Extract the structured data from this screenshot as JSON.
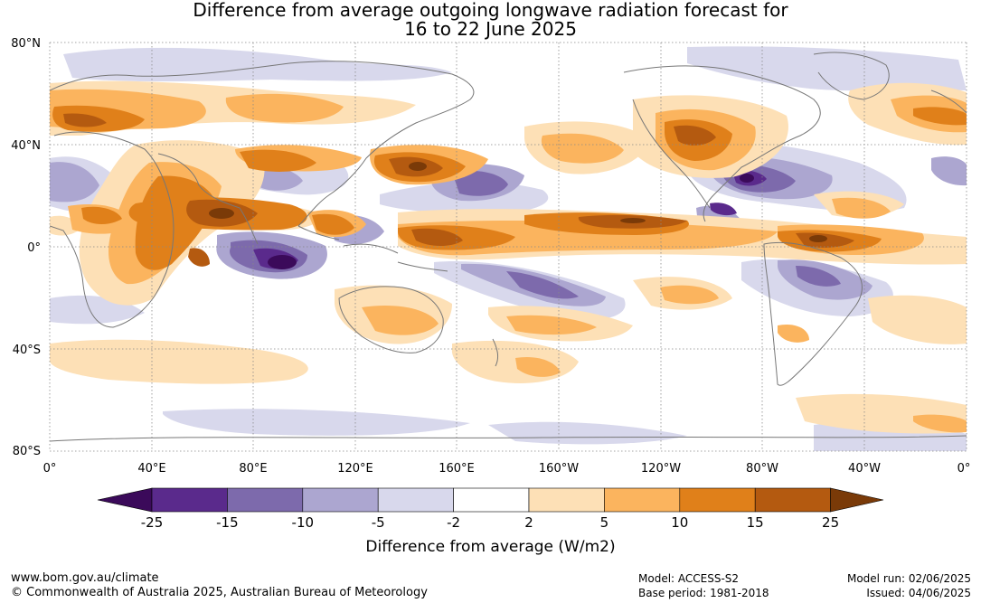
{
  "title_line1": "Difference from average outgoing longwave radiation forecast for",
  "title_line2": "16 to 22 June 2025",
  "lat_labels": [
    "80°N",
    "40°N",
    "0°",
    "40°S",
    "80°S"
  ],
  "lon_labels": [
    "0°",
    "40°E",
    "80°E",
    "120°E",
    "160°E",
    "160°W",
    "120°W",
    "80°W",
    "40°W",
    "0°"
  ],
  "colorbar": {
    "label": "Difference from average (W/m2)",
    "ticks": [
      "-25",
      "-15",
      "-10",
      "-5",
      "-2",
      "2",
      "5",
      "10",
      "15",
      "25"
    ],
    "colors": [
      "#3b0a5a",
      "#5a2a8c",
      "#7d6aac",
      "#aca6d0",
      "#d8d8ec",
      "#ffffff",
      "#fde0b6",
      "#fbb45e",
      "#e0801a",
      "#b45a10",
      "#7a3a08"
    ]
  },
  "footer": {
    "website": "www.bom.gov.au/climate",
    "copyright": "© Commonwealth of Australia 2025, Australian Bureau of Meteorology",
    "model": "Model: ACCESS-S2",
    "base_period": "Base period: 1981-2018",
    "model_run": "Model run: 02/06/2025",
    "issued": "Issued: 04/06/2025"
  }
}
